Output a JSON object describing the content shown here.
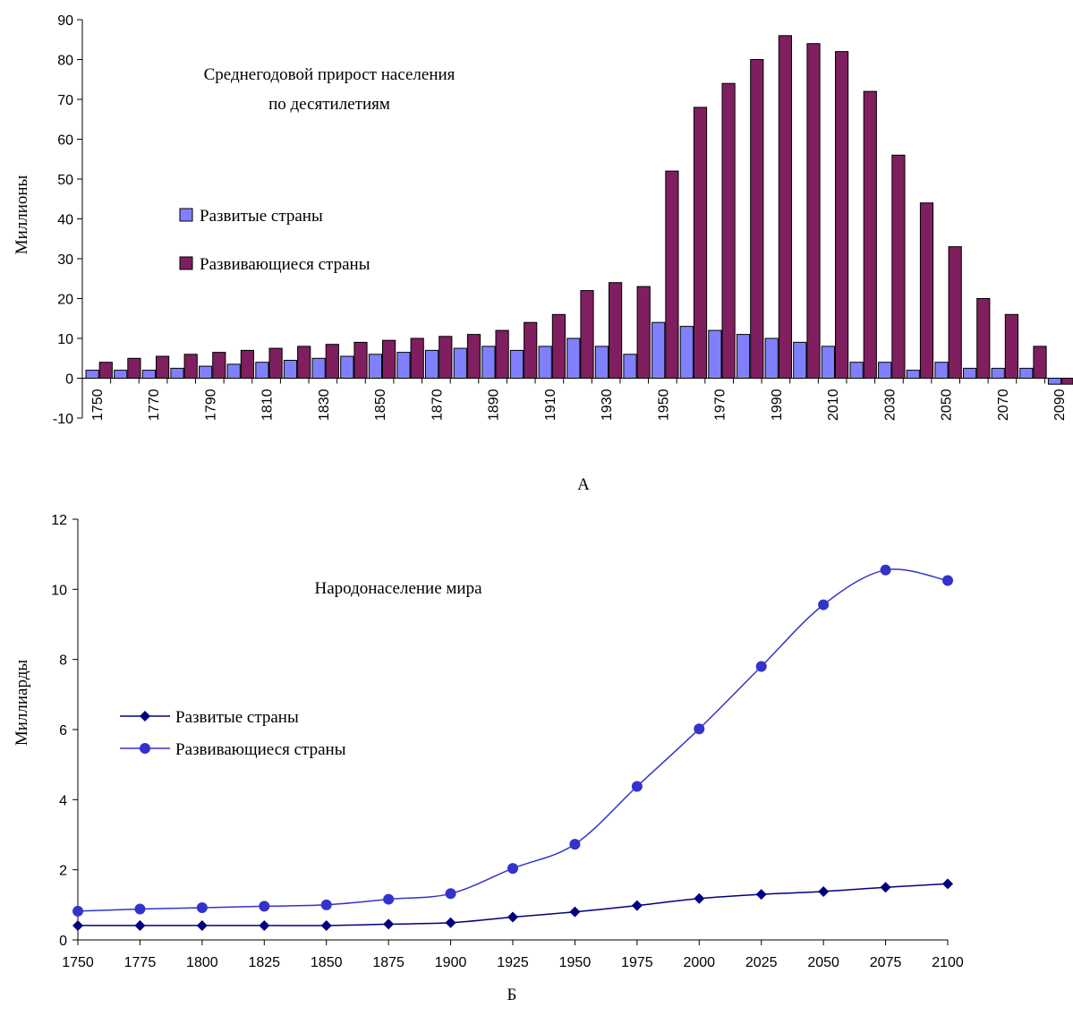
{
  "colors": {
    "developed_bar": "#8080ff",
    "developing_bar": "#7f1f5f",
    "developed_line": "#000080",
    "developing_line": "#3333cc",
    "axis": "#000000"
  },
  "chart_data": [
    {
      "type": "bar",
      "title": "Среднегодовой прирост населения по десятилетиям",
      "title_lines": [
        "Среднегодовой прирост населения",
        "по десятилетиям"
      ],
      "caption": "А",
      "ylabel": "Миллионы",
      "xlabel": "",
      "ylim": [
        -10,
        90
      ],
      "yticks": [
        "-10",
        "0",
        "10",
        "20",
        "30",
        "40",
        "50",
        "60",
        "70",
        "80",
        "90"
      ],
      "xtick_labels": [
        "1750",
        "1770",
        "1790",
        "1810",
        "1830",
        "1850",
        "1870",
        "1890",
        "1910",
        "1930",
        "1950",
        "1970",
        "1990",
        "2010",
        "2030",
        "2050",
        "2070",
        "2090"
      ],
      "categories": [
        "1750",
        "1760",
        "1770",
        "1780",
        "1790",
        "1800",
        "1810",
        "1820",
        "1830",
        "1840",
        "1850",
        "1860",
        "1870",
        "1880",
        "1890",
        "1900",
        "1910",
        "1920",
        "1930",
        "1940",
        "1950",
        "1960",
        "1970",
        "1980",
        "1990",
        "2000",
        "2010",
        "2020",
        "2030",
        "2040",
        "2050",
        "2060",
        "2070",
        "2080",
        "2090"
      ],
      "grid": false,
      "legend_position": "left",
      "series": [
        {
          "name": "Развитые страны",
          "color_key": "developed_bar",
          "values": [
            2,
            2,
            2,
            2.5,
            3,
            3.5,
            4,
            4.5,
            5,
            5.5,
            6,
            6.5,
            7,
            7.5,
            8,
            7,
            8,
            10,
            8,
            6,
            14,
            13,
            12,
            11,
            10,
            9,
            8,
            4,
            4,
            2,
            4,
            2.5,
            2.5,
            2.5,
            -1.5
          ]
        },
        {
          "name": "Развивающиеся страны",
          "color_key": "developing_bar",
          "values": [
            4,
            5,
            5.5,
            6,
            6.5,
            7,
            7.5,
            8,
            8.5,
            9,
            9.5,
            10,
            10.5,
            11,
            12,
            14,
            16,
            22,
            24,
            23,
            52,
            68,
            74,
            80,
            86,
            84,
            82,
            72,
            56,
            44,
            33,
            20,
            16,
            8,
            -1.5
          ]
        }
      ]
    },
    {
      "type": "line",
      "title": "Народонаселение мира",
      "caption": "Б",
      "ylabel": "Миллиарды",
      "xlabel": "",
      "ylim": [
        0,
        12
      ],
      "yticks": [
        "0",
        "2",
        "4",
        "6",
        "8",
        "10",
        "12"
      ],
      "x": [
        "1750",
        "1775",
        "1800",
        "1825",
        "1850",
        "1875",
        "1900",
        "1925",
        "1950",
        "1975",
        "2000",
        "2025",
        "2050",
        "2075",
        "2100"
      ],
      "grid": false,
      "legend_position": "left",
      "series": [
        {
          "name": "Развитые страны",
          "marker": "diamond",
          "color_key": "developed_line",
          "values": [
            0.41,
            0.41,
            0.41,
            0.41,
            0.41,
            0.45,
            0.49,
            0.65,
            0.8,
            0.98,
            1.18,
            1.3,
            1.38,
            1.5,
            1.6
          ]
        },
        {
          "name": "Развивающиеся страны",
          "marker": "circle",
          "color_key": "developing_line",
          "values": [
            0.82,
            0.88,
            0.92,
            0.96,
            1.0,
            1.16,
            1.32,
            2.04,
            2.73,
            4.38,
            6.02,
            7.8,
            9.56,
            10.55,
            10.25
          ]
        }
      ]
    }
  ]
}
